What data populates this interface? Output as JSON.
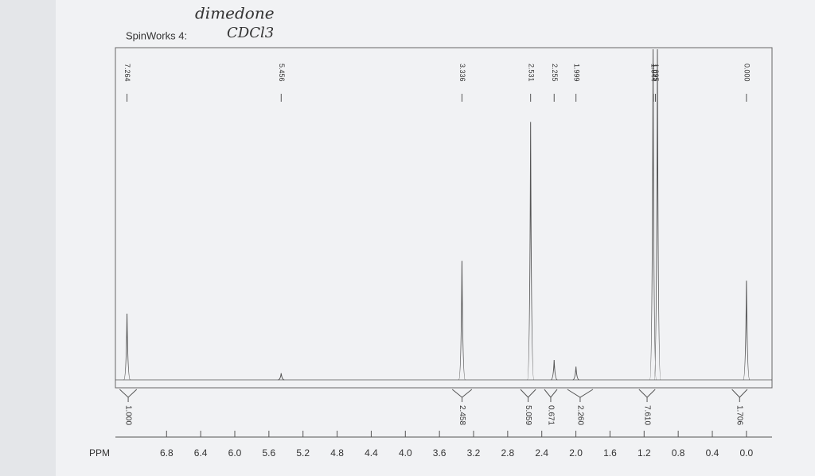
{
  "chart_data": {
    "type": "nmr",
    "title": "SpinWorks 4:",
    "annotation": [
      "dimedone",
      "CDCl3"
    ],
    "x_label": "PPM",
    "xlim": [
      7.4,
      -0.3
    ],
    "ylim": [
      0,
      100
    ],
    "xticks": [
      6.8,
      6.4,
      {
        "value": 6,
        "label": "6.0"
      },
      5.6,
      5.2,
      4.8,
      4.4,
      {
        "value": 4,
        "label": "4.0"
      },
      3.6,
      3.2,
      2.8,
      2.4,
      {
        "value": 2,
        "label": "2.0"
      },
      1.6,
      1.2,
      0.8,
      0.4,
      {
        "value": 0,
        "label": "0.0"
      }
    ],
    "color": "#555555",
    "peaks": [
      {
        "ppm": 7.264,
        "height": 20
      },
      {
        "ppm": 5.456,
        "height": 2
      },
      {
        "ppm": 3.336,
        "height": 36
      },
      {
        "ppm": 2.531,
        "height": 78
      },
      {
        "ppm": 2.255,
        "height": 6
      },
      {
        "ppm": 1.999,
        "height": 4
      },
      {
        "ppm": 1.095,
        "height": 100
      },
      {
        "ppm": 1.044,
        "height": 100
      },
      {
        "ppm": {
          "value": 0,
          "label": "0.000"
        },
        "height": 30
      }
    ],
    "integrals": [
      {
        "range": [
          7.35,
          7.15
        ],
        "value": {
          "value": 1,
          "label": "1.000"
        }
      },
      {
        "range": [
          3.45,
          3.22
        ],
        "value": 2.458
      },
      {
        "range": [
          2.65,
          2.47
        ],
        "value": 5.059
      },
      {
        "range": [
          2.37,
          2.22
        ],
        "value": 0.671
      },
      {
        "range": [
          2.1,
          1.8
        ],
        "value": {
          "value": 2.26,
          "label": "2.260"
        }
      },
      {
        "range": [
          1.26,
          1.07
        ],
        "value": {
          "value": 7.61,
          "label": "7.610"
        }
      },
      {
        "range": [
          0.17,
          -0.01
        ],
        "value": 1.706
      }
    ]
  }
}
